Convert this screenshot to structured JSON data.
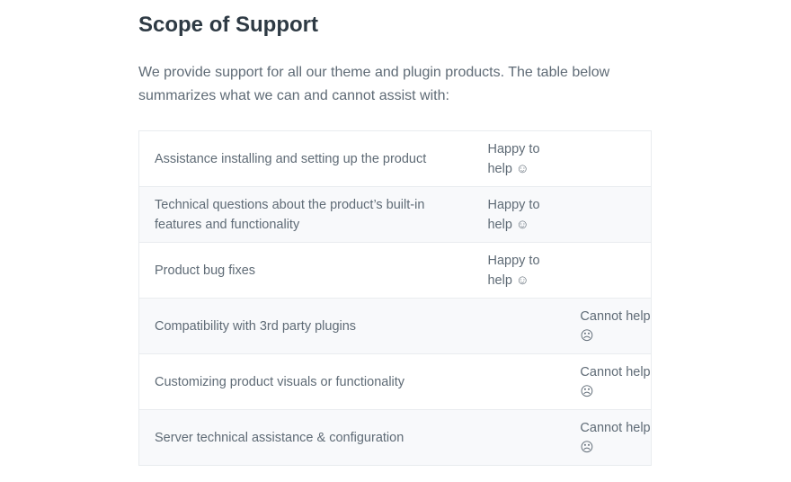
{
  "title": "Scope of Support",
  "intro": "We provide support for all our theme and plugin products. The table below summarizes what we can and cannot assist with:",
  "rows": [
    {
      "item": "Assistance installing and setting up the product",
      "happy": "Happy to help ☺",
      "cannot": ""
    },
    {
      "item": "Technical questions about the product’s built-in features and functionality",
      "happy": "Happy to help ☺",
      "cannot": ""
    },
    {
      "item": "Product bug fixes",
      "happy": "Happy to help ☺",
      "cannot": ""
    },
    {
      "item": "Compatibility with 3rd party plugins",
      "happy": "",
      "cannot": "Cannot help ☹"
    },
    {
      "item": "Customizing product visuals or functionality",
      "happy": "",
      "cannot": "Cannot help ☹"
    },
    {
      "item": "Server technical assistance & configuration",
      "happy": "",
      "cannot": "Cannot help ☹"
    }
  ]
}
